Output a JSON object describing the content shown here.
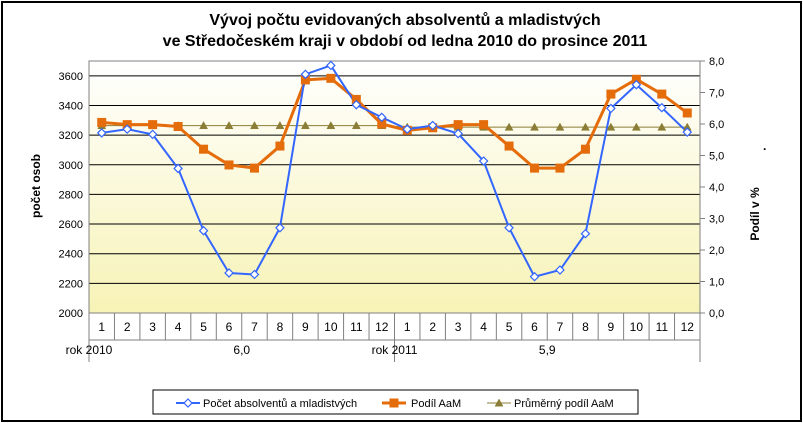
{
  "chart_data": {
    "type": "line",
    "title_line1": "Vývoj počtu evidovaných absolventů a mladistvých",
    "title_line2": "ve Středočeském kraji v období od ledna 2010 do prosince 2011",
    "ylabel": "počet osob",
    "y2label": "Podíl v %",
    "side_note": ".",
    "ylim": [
      2000,
      3700
    ],
    "y_ticks": [
      "2000",
      "2200",
      "2400",
      "2600",
      "2800",
      "3000",
      "3200",
      "3400",
      "3600"
    ],
    "y2lim": [
      0,
      8
    ],
    "y2_ticks": [
      "0,0",
      "1,0",
      "2,0",
      "3,0",
      "4,0",
      "5,0",
      "6,0",
      "7,0",
      "8,0"
    ],
    "categories": [
      "1",
      "2",
      "3",
      "4",
      "5",
      "6",
      "7",
      "8",
      "9",
      "10",
      "11",
      "12",
      "1",
      "2",
      "3",
      "4",
      "5",
      "6",
      "7",
      "8",
      "9",
      "10",
      "11",
      "12"
    ],
    "groups": [
      {
        "label": "rok 2010",
        "avg_label": "6,0"
      },
      {
        "label": "rok 2011",
        "avg_label": "5,9"
      }
    ],
    "series": [
      {
        "name": "Počet absolventů a mladistvých",
        "axis": "left",
        "color": "#3366ff",
        "values": [
          3215,
          3240,
          3205,
          2975,
          2555,
          2270,
          2260,
          2575,
          3610,
          3670,
          3405,
          3320,
          3240,
          3265,
          3210,
          3025,
          2575,
          2245,
          2290,
          2535,
          3380,
          3540,
          3385,
          3220
        ]
      },
      {
        "name": "Podíl AaM",
        "axis": "right",
        "color": "#e46c0a",
        "values": [
          6.05,
          5.98,
          5.98,
          5.92,
          5.2,
          4.7,
          4.6,
          5.3,
          7.4,
          7.45,
          6.78,
          6.0,
          5.8,
          5.88,
          5.98,
          5.98,
          5.3,
          4.6,
          4.6,
          5.2,
          6.95,
          7.42,
          6.95,
          6.35
        ]
      },
      {
        "name": "Průměrný podíl AaM",
        "axis": "right",
        "color": "#8b7d35",
        "values": [
          5.95,
          5.95,
          5.95,
          5.95,
          5.95,
          5.95,
          5.95,
          5.95,
          5.95,
          5.95,
          5.95,
          5.95,
          5.9,
          5.9,
          5.9,
          5.9,
          5.9,
          5.9,
          5.9,
          5.9,
          5.9,
          5.9,
          5.9,
          5.9
        ]
      }
    ],
    "grid": true,
    "legend_position": "bottom"
  }
}
